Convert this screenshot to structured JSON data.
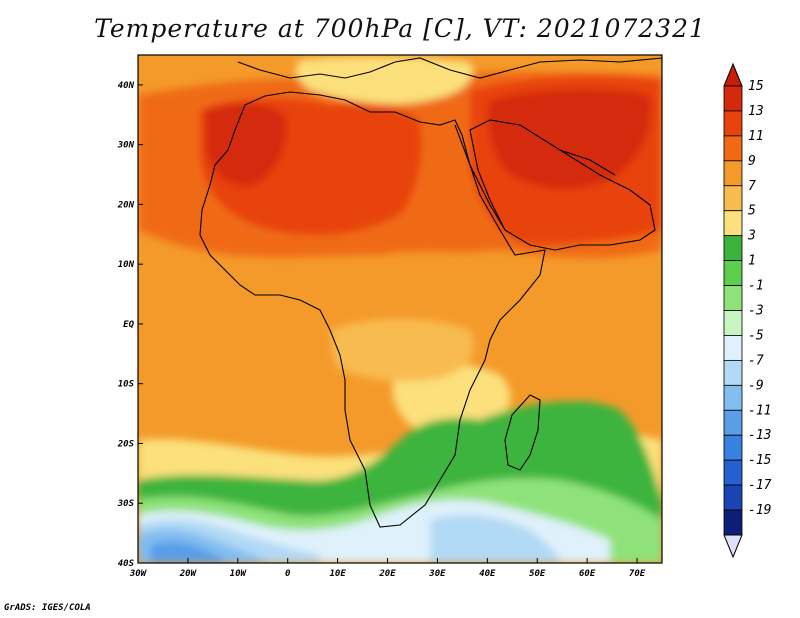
{
  "title": "Temperature at 700hPa [C], VT: 2021072321",
  "credit": "GrADS: IGES/COLA",
  "map": {
    "lon_range": [
      -30,
      75
    ],
    "lat_range": [
      -40,
      45
    ],
    "x_ticks": [
      {
        "lon": -30,
        "label": "30W"
      },
      {
        "lon": -20,
        "label": "20W"
      },
      {
        "lon": -10,
        "label": "10W"
      },
      {
        "lon": 0,
        "label": "0"
      },
      {
        "lon": 10,
        "label": "10E"
      },
      {
        "lon": 20,
        "label": "20E"
      },
      {
        "lon": 30,
        "label": "30E"
      },
      {
        "lon": 40,
        "label": "40E"
      },
      {
        "lon": 50,
        "label": "50E"
      },
      {
        "lon": 60,
        "label": "60E"
      },
      {
        "lon": 70,
        "label": "70E"
      }
    ],
    "y_ticks": [
      {
        "lat": 40,
        "label": "40N"
      },
      {
        "lat": 30,
        "label": "30N"
      },
      {
        "lat": 20,
        "label": "20N"
      },
      {
        "lat": 10,
        "label": "10N"
      },
      {
        "lat": 0,
        "label": "EQ"
      },
      {
        "lat": -10,
        "label": "10S"
      },
      {
        "lat": -20,
        "label": "20S"
      },
      {
        "lat": -30,
        "label": "30S"
      },
      {
        "lat": -40,
        "label": "40S"
      }
    ]
  },
  "colorbar": {
    "levels": [
      {
        "label": "15",
        "color": "#d42a0c"
      },
      {
        "label": "13",
        "color": "#e8420f"
      },
      {
        "label": "11",
        "color": "#f06a14"
      },
      {
        "label": "9",
        "color": "#f49a2a"
      },
      {
        "label": "7",
        "color": "#f8bb50"
      },
      {
        "label": "5",
        "color": "#fbe07c"
      },
      {
        "label": "3",
        "color": "#3cb43c"
      },
      {
        "label": "1",
        "color": "#5ccf4e"
      },
      {
        "label": "-1",
        "color": "#8fe27a"
      },
      {
        "label": "-3",
        "color": "#c8f4c0"
      },
      {
        "label": "-5",
        "color": "#dff1fb"
      },
      {
        "label": "-7",
        "color": "#b2d9f5"
      },
      {
        "label": "-9",
        "color": "#82bef0"
      },
      {
        "label": "-11",
        "color": "#5a9ee8"
      },
      {
        "label": "-13",
        "color": "#3a80e0"
      },
      {
        "label": "-15",
        "color": "#2460d2"
      },
      {
        "label": "-17",
        "color": "#1a44b4"
      },
      {
        "label": "-19",
        "color": "#0c1e78"
      }
    ],
    "top_color": "#c81e0a",
    "bottom_color": "#dfe0fb"
  },
  "field_colors": {
    "base": "#f49a2a",
    "warm": "#f06a14",
    "hot": "#e8420f",
    "hottest": "#d42a0c",
    "pale": "#f8bb50",
    "cream": "#fbe07c",
    "green": "#3cb43c",
    "light_green": "#5ccf4e",
    "mint": "#8fe27a",
    "pale_green": "#c8f4c0",
    "ice": "#dff1fb",
    "light_blue": "#b2d9f5",
    "blue": "#82bef0",
    "mid_blue": "#5a9ee8",
    "deep_blue": "#3a80e0",
    "navy": "#2460d2"
  }
}
